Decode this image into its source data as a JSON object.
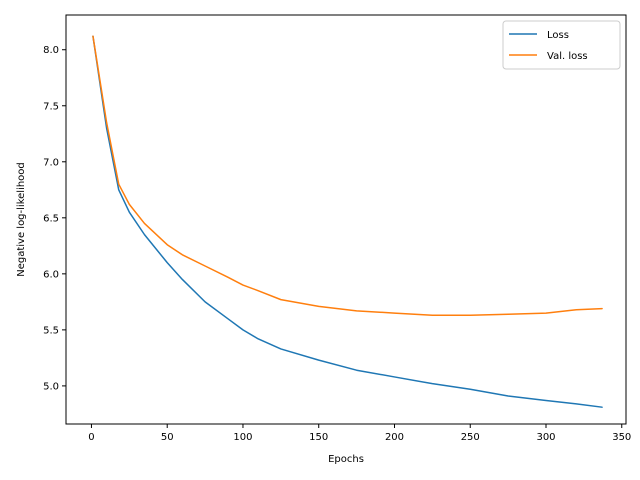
{
  "chart_data": {
    "type": "line",
    "xlabel": "Epochs",
    "ylabel": "Negative log-likelihood",
    "xlim": [
      -16.8,
      352.8
    ],
    "ylim": [
      4.66,
      8.31
    ],
    "xticks": [
      0,
      50,
      100,
      150,
      200,
      250,
      300,
      350
    ],
    "yticks": [
      5.0,
      5.5,
      6.0,
      6.5,
      7.0,
      7.5,
      8.0
    ],
    "xtick_labels": [
      "0",
      "50",
      "100",
      "150",
      "200",
      "250",
      "300",
      "350"
    ],
    "ytick_labels": [
      "5.0",
      "5.5",
      "6.0",
      "6.5",
      "7.0",
      "7.5",
      "8.0"
    ],
    "grid": false,
    "legend_position": "top-right",
    "series": [
      {
        "name": "Loss",
        "color": "#1f77b4",
        "x": [
          1,
          10,
          18,
          25,
          35,
          50,
          60,
          75,
          90,
          100,
          110,
          125,
          150,
          175,
          200,
          225,
          250,
          275,
          300,
          320,
          337
        ],
        "y": [
          8.12,
          7.3,
          6.75,
          6.55,
          6.35,
          6.1,
          5.95,
          5.75,
          5.6,
          5.5,
          5.42,
          5.33,
          5.23,
          5.14,
          5.08,
          5.02,
          4.97,
          4.91,
          4.87,
          4.84,
          4.81
        ]
      },
      {
        "name": "Val. loss",
        "color": "#ff7f0e",
        "x": [
          1,
          10,
          18,
          25,
          35,
          50,
          60,
          75,
          90,
          100,
          110,
          125,
          150,
          175,
          200,
          225,
          250,
          275,
          300,
          320,
          337
        ],
        "y": [
          8.12,
          7.35,
          6.8,
          6.62,
          6.45,
          6.26,
          6.17,
          6.07,
          5.97,
          5.9,
          5.85,
          5.77,
          5.71,
          5.67,
          5.65,
          5.63,
          5.63,
          5.64,
          5.65,
          5.68,
          5.69
        ]
      }
    ]
  }
}
